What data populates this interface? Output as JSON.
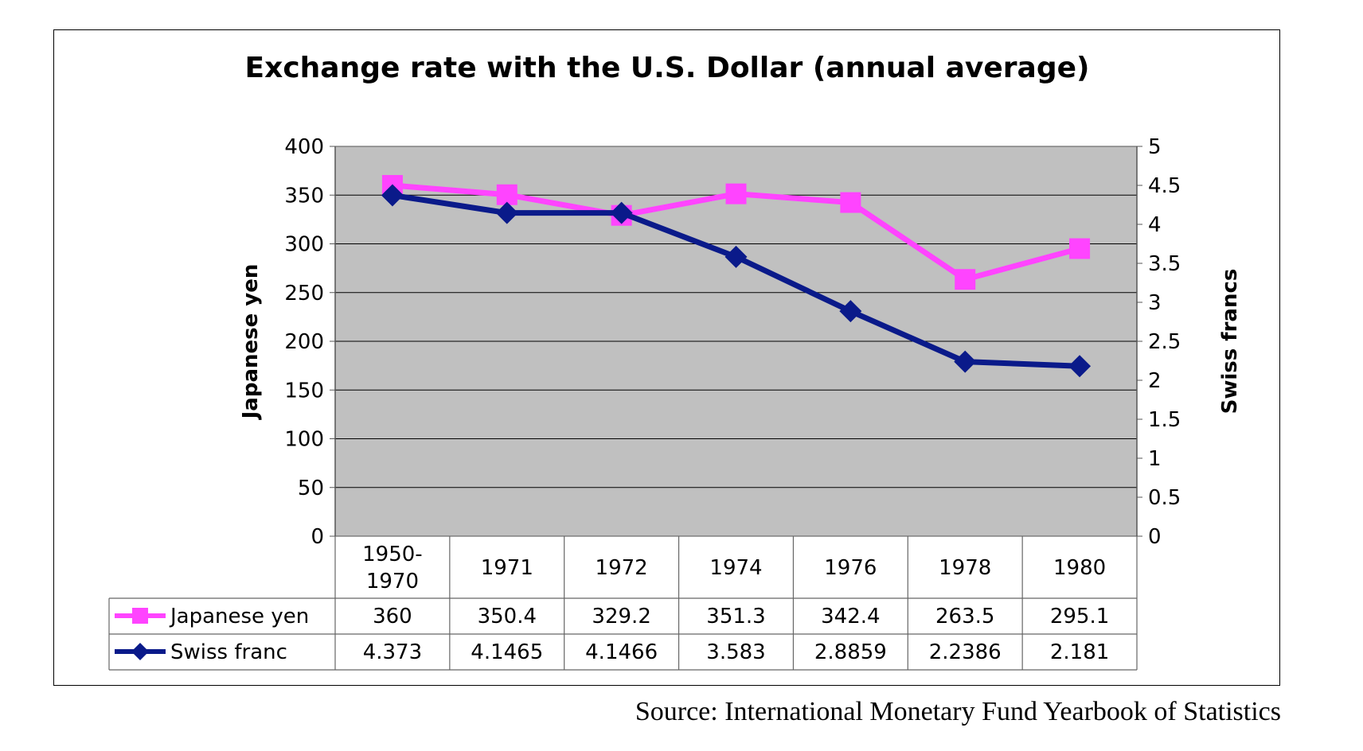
{
  "chart_data": {
    "type": "line",
    "title": "Exchange rate with the U.S. Dollar (annual average)",
    "categories": [
      [
        "1950-",
        "1970"
      ],
      [
        "1971"
      ],
      [
        "1972"
      ],
      [
        "1974"
      ],
      [
        "1976"
      ],
      [
        "1978"
      ],
      [
        "1980"
      ]
    ],
    "y_left": {
      "label": "Japanese yen",
      "range": [
        0,
        400
      ],
      "ticks": [
        "0",
        "50",
        "100",
        "150",
        "200",
        "250",
        "300",
        "350",
        "400"
      ]
    },
    "y_right": {
      "label": "Swiss francs",
      "range": [
        0,
        5
      ],
      "ticks": [
        "0",
        "0.5",
        "1",
        "1.5",
        "2",
        "2.5",
        "3",
        "3.5",
        "4",
        "4.5",
        "5"
      ]
    },
    "series": [
      {
        "name": "Japanese yen",
        "axis": "left",
        "color": "#ff44ff",
        "marker": "square",
        "values": [
          360,
          350.4,
          329.2,
          351.3,
          342.4,
          263.5,
          295.1
        ],
        "labels": [
          "360",
          "350.4",
          "329.2",
          "351.3",
          "342.4",
          "263.5",
          "295.1"
        ]
      },
      {
        "name": "Swiss franc",
        "axis": "right",
        "color": "#0a1a8a",
        "marker": "diamond",
        "values": [
          4.373,
          4.1465,
          4.1466,
          3.583,
          2.8859,
          2.2386,
          2.181
        ],
        "labels": [
          "4.373",
          "4.1465",
          "4.1466",
          "3.583",
          "2.8859",
          "2.2386",
          "2.181"
        ]
      }
    ],
    "grid": true,
    "plot_background": "#c0c0c0",
    "legend": "data-table-below"
  },
  "source": "Source: International Monetary Fund Yearbook of Statistics"
}
